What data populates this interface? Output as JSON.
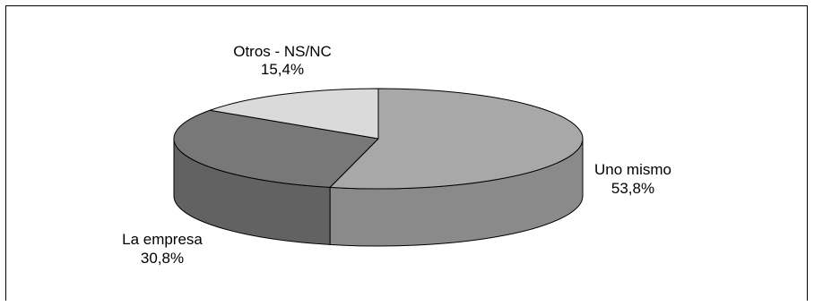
{
  "chart_data": {
    "type": "pie",
    "three_d": true,
    "slices": [
      {
        "label": "Uno mismo",
        "value": 53.8,
        "display": "53,8%",
        "color": "#a8a8a8"
      },
      {
        "label": "La empresa",
        "value": 30.8,
        "display": "30,8%",
        "color": "#787878"
      },
      {
        "label": "Otros - NS/NC",
        "value": 15.4,
        "display": "15,4%",
        "color": "#dadada"
      }
    ],
    "legend": "none"
  }
}
